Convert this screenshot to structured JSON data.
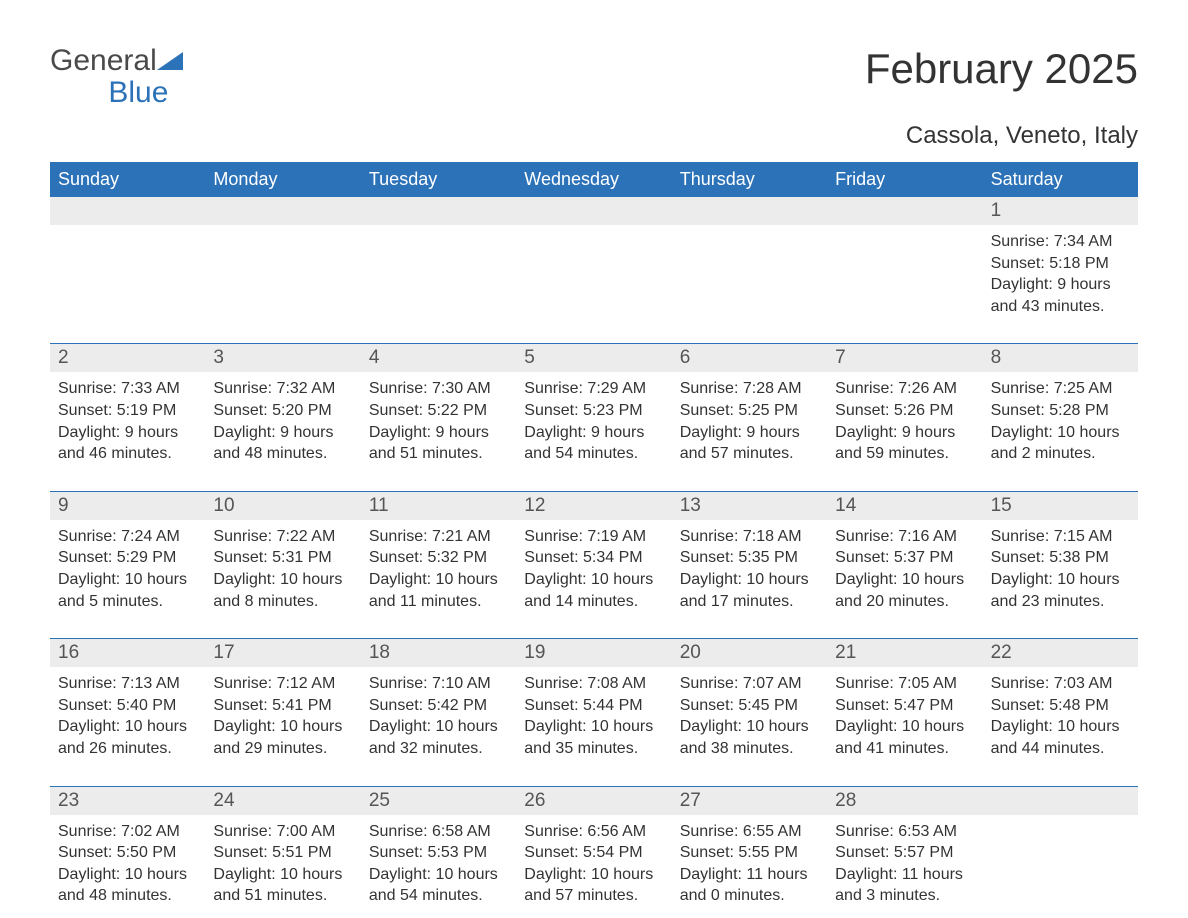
{
  "logo": {
    "textGray": "General",
    "textBlue": "Blue"
  },
  "title": "February 2025",
  "location": "Cassola, Veneto, Italy",
  "colors": {
    "headerBg": "#2b72b8",
    "headerText": "#ffffff",
    "dayBarBg": "#ececec",
    "dayBarText": "#555555",
    "bodyText": "#333333",
    "pageBg": "#ffffff",
    "logoBlue": "#2b72b8",
    "logoGray": "#4a4a4a"
  },
  "typography": {
    "title_fontsize": 42,
    "location_fontsize": 24,
    "dayheader_fontsize": 18,
    "daynum_fontsize": 19,
    "info_fontsize": 16,
    "logo_fontsize": 30,
    "font_family": "Arial"
  },
  "dayHeaders": [
    "Sunday",
    "Monday",
    "Tuesday",
    "Wednesday",
    "Thursday",
    "Friday",
    "Saturday"
  ],
  "weeks": [
    [
      {
        "empty": true
      },
      {
        "empty": true
      },
      {
        "empty": true
      },
      {
        "empty": true
      },
      {
        "empty": true
      },
      {
        "empty": true
      },
      {
        "day": "1",
        "sunrise": "Sunrise: 7:34 AM",
        "sunset": "Sunset: 5:18 PM",
        "daylight": "Daylight: 9 hours and 43 minutes."
      }
    ],
    [
      {
        "day": "2",
        "sunrise": "Sunrise: 7:33 AM",
        "sunset": "Sunset: 5:19 PM",
        "daylight": "Daylight: 9 hours and 46 minutes."
      },
      {
        "day": "3",
        "sunrise": "Sunrise: 7:32 AM",
        "sunset": "Sunset: 5:20 PM",
        "daylight": "Daylight: 9 hours and 48 minutes."
      },
      {
        "day": "4",
        "sunrise": "Sunrise: 7:30 AM",
        "sunset": "Sunset: 5:22 PM",
        "daylight": "Daylight: 9 hours and 51 minutes."
      },
      {
        "day": "5",
        "sunrise": "Sunrise: 7:29 AM",
        "sunset": "Sunset: 5:23 PM",
        "daylight": "Daylight: 9 hours and 54 minutes."
      },
      {
        "day": "6",
        "sunrise": "Sunrise: 7:28 AM",
        "sunset": "Sunset: 5:25 PM",
        "daylight": "Daylight: 9 hours and 57 minutes."
      },
      {
        "day": "7",
        "sunrise": "Sunrise: 7:26 AM",
        "sunset": "Sunset: 5:26 PM",
        "daylight": "Daylight: 9 hours and 59 minutes."
      },
      {
        "day": "8",
        "sunrise": "Sunrise: 7:25 AM",
        "sunset": "Sunset: 5:28 PM",
        "daylight": "Daylight: 10 hours and 2 minutes."
      }
    ],
    [
      {
        "day": "9",
        "sunrise": "Sunrise: 7:24 AM",
        "sunset": "Sunset: 5:29 PM",
        "daylight": "Daylight: 10 hours and 5 minutes."
      },
      {
        "day": "10",
        "sunrise": "Sunrise: 7:22 AM",
        "sunset": "Sunset: 5:31 PM",
        "daylight": "Daylight: 10 hours and 8 minutes."
      },
      {
        "day": "11",
        "sunrise": "Sunrise: 7:21 AM",
        "sunset": "Sunset: 5:32 PM",
        "daylight": "Daylight: 10 hours and 11 minutes."
      },
      {
        "day": "12",
        "sunrise": "Sunrise: 7:19 AM",
        "sunset": "Sunset: 5:34 PM",
        "daylight": "Daylight: 10 hours and 14 minutes."
      },
      {
        "day": "13",
        "sunrise": "Sunrise: 7:18 AM",
        "sunset": "Sunset: 5:35 PM",
        "daylight": "Daylight: 10 hours and 17 minutes."
      },
      {
        "day": "14",
        "sunrise": "Sunrise: 7:16 AM",
        "sunset": "Sunset: 5:37 PM",
        "daylight": "Daylight: 10 hours and 20 minutes."
      },
      {
        "day": "15",
        "sunrise": "Sunrise: 7:15 AM",
        "sunset": "Sunset: 5:38 PM",
        "daylight": "Daylight: 10 hours and 23 minutes."
      }
    ],
    [
      {
        "day": "16",
        "sunrise": "Sunrise: 7:13 AM",
        "sunset": "Sunset: 5:40 PM",
        "daylight": "Daylight: 10 hours and 26 minutes."
      },
      {
        "day": "17",
        "sunrise": "Sunrise: 7:12 AM",
        "sunset": "Sunset: 5:41 PM",
        "daylight": "Daylight: 10 hours and 29 minutes."
      },
      {
        "day": "18",
        "sunrise": "Sunrise: 7:10 AM",
        "sunset": "Sunset: 5:42 PM",
        "daylight": "Daylight: 10 hours and 32 minutes."
      },
      {
        "day": "19",
        "sunrise": "Sunrise: 7:08 AM",
        "sunset": "Sunset: 5:44 PM",
        "daylight": "Daylight: 10 hours and 35 minutes."
      },
      {
        "day": "20",
        "sunrise": "Sunrise: 7:07 AM",
        "sunset": "Sunset: 5:45 PM",
        "daylight": "Daylight: 10 hours and 38 minutes."
      },
      {
        "day": "21",
        "sunrise": "Sunrise: 7:05 AM",
        "sunset": "Sunset: 5:47 PM",
        "daylight": "Daylight: 10 hours and 41 minutes."
      },
      {
        "day": "22",
        "sunrise": "Sunrise: 7:03 AM",
        "sunset": "Sunset: 5:48 PM",
        "daylight": "Daylight: 10 hours and 44 minutes."
      }
    ],
    [
      {
        "day": "23",
        "sunrise": "Sunrise: 7:02 AM",
        "sunset": "Sunset: 5:50 PM",
        "daylight": "Daylight: 10 hours and 48 minutes."
      },
      {
        "day": "24",
        "sunrise": "Sunrise: 7:00 AM",
        "sunset": "Sunset: 5:51 PM",
        "daylight": "Daylight: 10 hours and 51 minutes."
      },
      {
        "day": "25",
        "sunrise": "Sunrise: 6:58 AM",
        "sunset": "Sunset: 5:53 PM",
        "daylight": "Daylight: 10 hours and 54 minutes."
      },
      {
        "day": "26",
        "sunrise": "Sunrise: 6:56 AM",
        "sunset": "Sunset: 5:54 PM",
        "daylight": "Daylight: 10 hours and 57 minutes."
      },
      {
        "day": "27",
        "sunrise": "Sunrise: 6:55 AM",
        "sunset": "Sunset: 5:55 PM",
        "daylight": "Daylight: 11 hours and 0 minutes."
      },
      {
        "day": "28",
        "sunrise": "Sunrise: 6:53 AM",
        "sunset": "Sunset: 5:57 PM",
        "daylight": "Daylight: 11 hours and 3 minutes."
      },
      {
        "empty": true
      }
    ]
  ]
}
